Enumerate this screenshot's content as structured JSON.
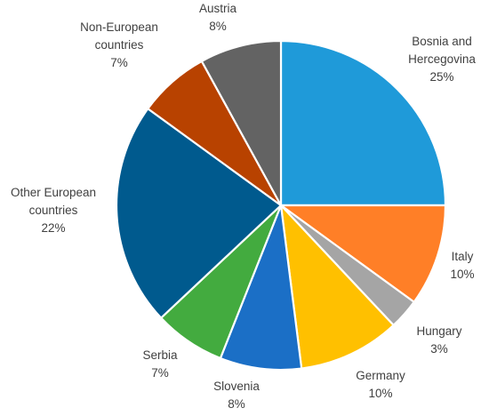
{
  "chart_data": {
    "type": "pie",
    "title": "",
    "start_angle_deg": 0,
    "direction": "clockwise",
    "legend": "none",
    "slices": [
      {
        "name": "Bosnia and Hercegovina",
        "name_lines": [
          "Bosnia and",
          "Hercegovina"
        ],
        "value": 25,
        "label": "25%",
        "color": "#1f9ad9"
      },
      {
        "name": "Italy",
        "name_lines": [
          "Italy"
        ],
        "value": 10,
        "label": "10%",
        "color": "#ff7f27"
      },
      {
        "name": "Hungary",
        "name_lines": [
          "Hungary"
        ],
        "value": 3,
        "label": "3%",
        "color": "#a5a5a5"
      },
      {
        "name": "Germany",
        "name_lines": [
          "Germany"
        ],
        "value": 10,
        "label": "10%",
        "color": "#ffc000"
      },
      {
        "name": "Slovenia",
        "name_lines": [
          "Slovenia"
        ],
        "value": 8,
        "label": "8%",
        "color": "#1b6fc6"
      },
      {
        "name": "Serbia",
        "name_lines": [
          "Serbia"
        ],
        "value": 7,
        "label": "7%",
        "color": "#43ab3f"
      },
      {
        "name": "Other European countries",
        "name_lines": [
          "Other European",
          "countries"
        ],
        "value": 22,
        "label": "22%",
        "color": "#005a8e"
      },
      {
        "name": "Non-European countries",
        "name_lines": [
          "Non-European",
          "countries"
        ],
        "value": 7,
        "label": "7%",
        "color": "#b84200"
      },
      {
        "name": "Austria",
        "name_lines": [
          "Austria"
        ],
        "value": 8,
        "label": "8%",
        "color": "#636363"
      }
    ]
  }
}
